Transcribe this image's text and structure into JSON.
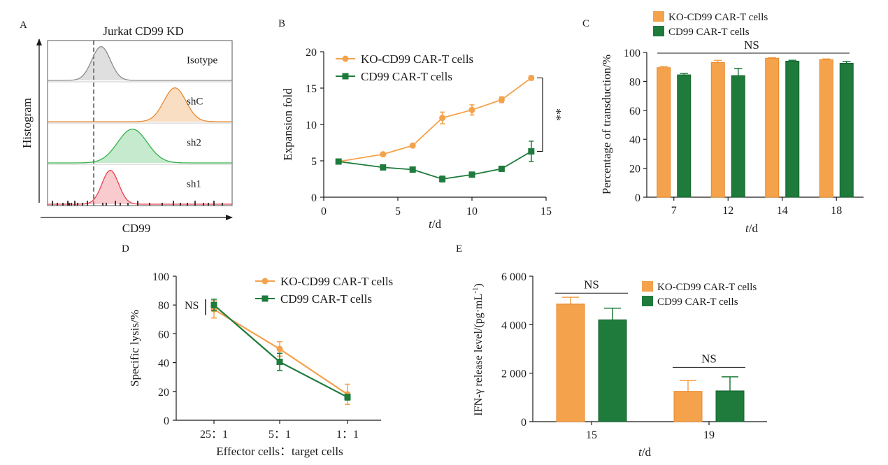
{
  "colors": {
    "orange": "#F4A24C",
    "orange_dark": "#E8892C",
    "green": "#1E7B3C",
    "green_dark": "#15612E",
    "gray": "#8C8C8C"
  },
  "chart_data": [
    {
      "panel": "A",
      "type": "histogram",
      "title": "Jurkat CD99 KD",
      "xlabel": "CD99",
      "ylabel": "Histogram",
      "series": [
        {
          "name": "Isotype",
          "peak": 0.29,
          "width": 0.05,
          "color": "#8C8C8C"
        },
        {
          "name": "shC",
          "peak": 0.69,
          "width": 0.06,
          "color": "#E8892C"
        },
        {
          "name": "sh2",
          "peak": 0.46,
          "width": 0.08,
          "color": "#33B24A"
        },
        {
          "name": "sh1",
          "peak": 0.34,
          "width": 0.045,
          "color": "#E84050"
        }
      ],
      "cutoff": 0.25
    },
    {
      "panel": "B",
      "type": "line",
      "xlabel_italic": "t",
      "xlabel_rest": "/d",
      "ylabel": "Expansion fold",
      "xlim": [
        0,
        15
      ],
      "ylim": [
        0,
        20
      ],
      "xticks": [
        0,
        5,
        10,
        15
      ],
      "yticks": [
        0,
        5,
        10,
        15,
        20
      ],
      "legend_position": "top-left",
      "annotation": "**",
      "series": [
        {
          "name": "KO-CD99 CAR-T cells",
          "marker": "circle",
          "color": "#F4A24C",
          "x": [
            1,
            4,
            6,
            8,
            10,
            12,
            14
          ],
          "y": [
            4.9,
            5.9,
            7.1,
            10.9,
            12,
            13.4,
            16.4
          ],
          "err": [
            0.1,
            0.1,
            0.1,
            0.8,
            0.7,
            0.4,
            0.3
          ]
        },
        {
          "name": "CD99 CAR-T cells",
          "marker": "square",
          "color": "#1E7B3C",
          "x": [
            1,
            4,
            6,
            8,
            10,
            12,
            14
          ],
          "y": [
            4.9,
            4.1,
            3.8,
            2.5,
            3.1,
            3.9,
            6.3
          ],
          "err": [
            0.1,
            0.1,
            0.1,
            0.4,
            0.1,
            0.1,
            1.4
          ]
        }
      ]
    },
    {
      "panel": "C",
      "type": "bar",
      "xlabel_italic": "t",
      "xlabel_rest": "/d",
      "ylabel": "Percentage of transduction/%",
      "categories": [
        "7",
        "12",
        "14",
        "18"
      ],
      "ylim": [
        0,
        100
      ],
      "yticks": [
        0,
        20,
        40,
        60,
        80,
        100
      ],
      "legend_position": "top",
      "annotation": "NS",
      "series": [
        {
          "name": "KO-CD99 CAR-T cells",
          "color": "#F4A24C",
          "values": [
            89.5,
            93,
            96,
            95
          ],
          "err": [
            0.8,
            1.5,
            0.4,
            0.5
          ]
        },
        {
          "name": "CD99 CAR-T cells",
          "color": "#1E7B3C",
          "values": [
            84.5,
            84,
            94,
            92.5
          ],
          "err": [
            1,
            5,
            0.6,
            1.3
          ]
        }
      ]
    },
    {
      "panel": "D",
      "type": "line",
      "xlabel": "Effector cells：target cells",
      "ylabel": "Specific lysis/%",
      "categories": [
        "25：1",
        "5：1",
        "1：1"
      ],
      "ylim": [
        0,
        100
      ],
      "yticks": [
        0,
        20,
        40,
        60,
        80,
        100
      ],
      "legend_position": "top-right",
      "annotation": "NS",
      "series": [
        {
          "name": "KO-CD99 CAR-T cells",
          "marker": "circle",
          "color": "#F4A24C",
          "values": [
            77,
            49.5,
            18
          ],
          "err": [
            6,
            5,
            7
          ]
        },
        {
          "name": "CD99 CAR-T cells",
          "marker": "square",
          "color": "#1E7B3C",
          "values": [
            80,
            40.5,
            16
          ],
          "err": [
            4,
            6,
            2
          ]
        }
      ]
    },
    {
      "panel": "E",
      "type": "bar",
      "xlabel_italic": "t",
      "xlabel_rest": "/d",
      "ylabel_main": "IFN-γ release level/(pg·mL",
      "ylabel_sup": "-1",
      "ylabel_end": ")",
      "categories": [
        "15",
        "19"
      ],
      "ylim": [
        0,
        6000
      ],
      "yticks": [
        0,
        2000,
        4000,
        6000
      ],
      "ytick_labels": [
        "0",
        "2 000",
        "4 000",
        "6 000"
      ],
      "legend_position": "top-right",
      "annotations": [
        "NS",
        "NS"
      ],
      "series": [
        {
          "name": "KO-CD99 CAR-T cells",
          "color": "#F4A24C",
          "values": [
            4850,
            1250
          ],
          "err": [
            280,
            450
          ]
        },
        {
          "name": "CD99 CAR-T cells",
          "color": "#1E7B3C",
          "values": [
            4200,
            1270
          ],
          "err": [
            480,
            580
          ]
        }
      ]
    }
  ]
}
